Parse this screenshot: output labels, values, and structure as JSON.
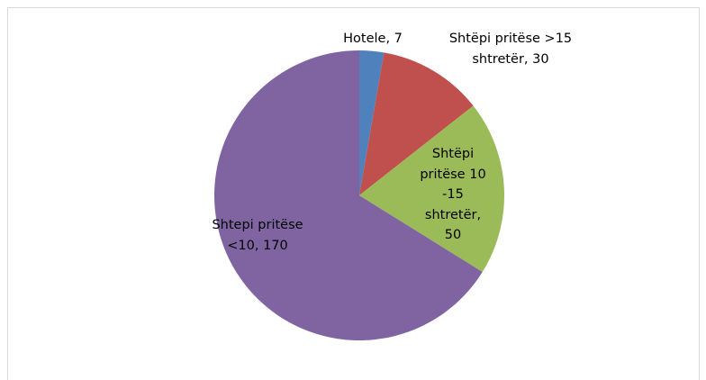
{
  "chart_data": {
    "type": "pie",
    "values": [
      7,
      30,
      50,
      170
    ],
    "value_labels": [
      "Hotele, 7",
      "Shtëpi pritëse >15 shtretër, 30",
      "Shtëpi pritëse 10 -15 shtretër, 50",
      "Shtepi pritëse <10, 170"
    ],
    "colors": [
      "#4f81bd",
      "#c0504d",
      "#9bbb59",
      "#8064a2"
    ]
  }
}
